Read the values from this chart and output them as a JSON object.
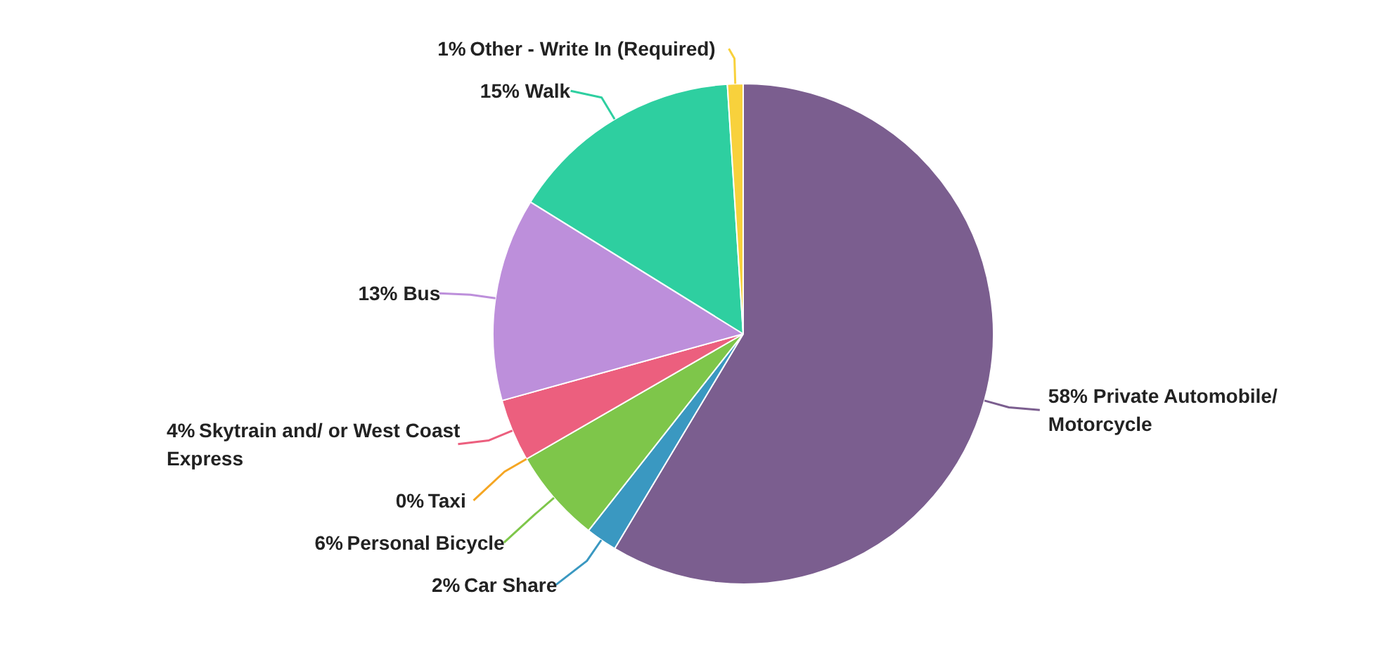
{
  "chart_data": {
    "type": "pie",
    "categories": [
      "Private Automobile/ Motorcycle",
      "Car Share",
      "Personal Bicycle",
      "Taxi",
      "Skytrain and/ or West Coast Express",
      "Bus",
      "Walk",
      "Other - Write In (Required)"
    ],
    "values": [
      58,
      2,
      6,
      0,
      4,
      13,
      15,
      1
    ],
    "colors": [
      "#7b5e8f",
      "#3a98c1",
      "#7ec64a",
      "#f5a623",
      "#ec5f7e",
      "#bd8fdb",
      "#2ecfa0",
      "#f8d13c"
    ],
    "value_labels": [
      "58%",
      "2%",
      "6%",
      "0%",
      "4%",
      "13%",
      "15%",
      "1%"
    ]
  }
}
